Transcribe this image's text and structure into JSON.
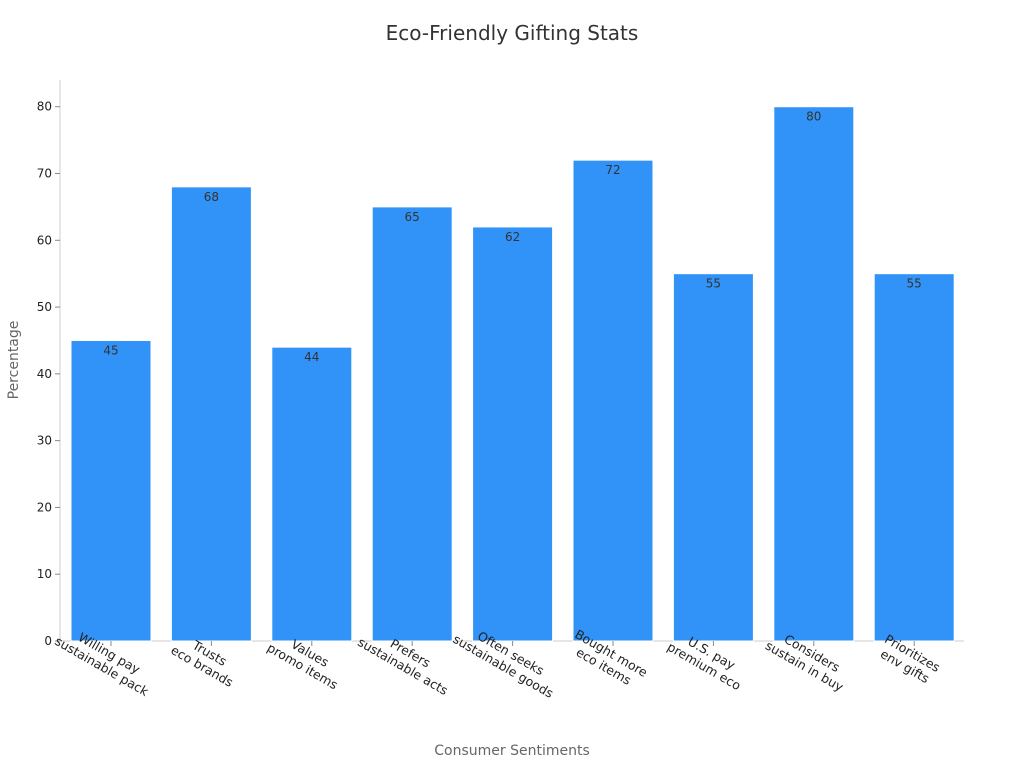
{
  "chart_data": {
    "type": "bar",
    "title": "Eco-Friendly Gifting Stats",
    "xlabel": "Consumer Sentiments",
    "ylabel": "Percentage",
    "categories": [
      [
        "Willing pay",
        "sustainable pack"
      ],
      [
        "Trusts",
        "eco brands"
      ],
      [
        "Values",
        "promo items"
      ],
      [
        "Prefers",
        "sustainable acts"
      ],
      [
        "Often seeks",
        "sustainable goods"
      ],
      [
        "Bought more",
        "eco items"
      ],
      [
        "U.S. pay",
        "premium eco"
      ],
      [
        "Considers",
        "sustain in buy"
      ],
      [
        "Prioritizes",
        "env gifts"
      ]
    ],
    "values": [
      45,
      68,
      44,
      65,
      62,
      72,
      55,
      80,
      55
    ],
    "data_labels": [
      "45",
      "68",
      "44",
      "65",
      "62",
      "72",
      "55",
      "80",
      "55"
    ],
    "ylim": [
      0,
      84
    ],
    "yticks": [
      0,
      10,
      20,
      30,
      40,
      50,
      60,
      70,
      80
    ],
    "ytick_labels": [
      "0",
      "10",
      "20",
      "30",
      "40",
      "50",
      "60",
      "70",
      "80"
    ],
    "grid": false,
    "legend": "none",
    "bar_color": "#3193F7"
  }
}
